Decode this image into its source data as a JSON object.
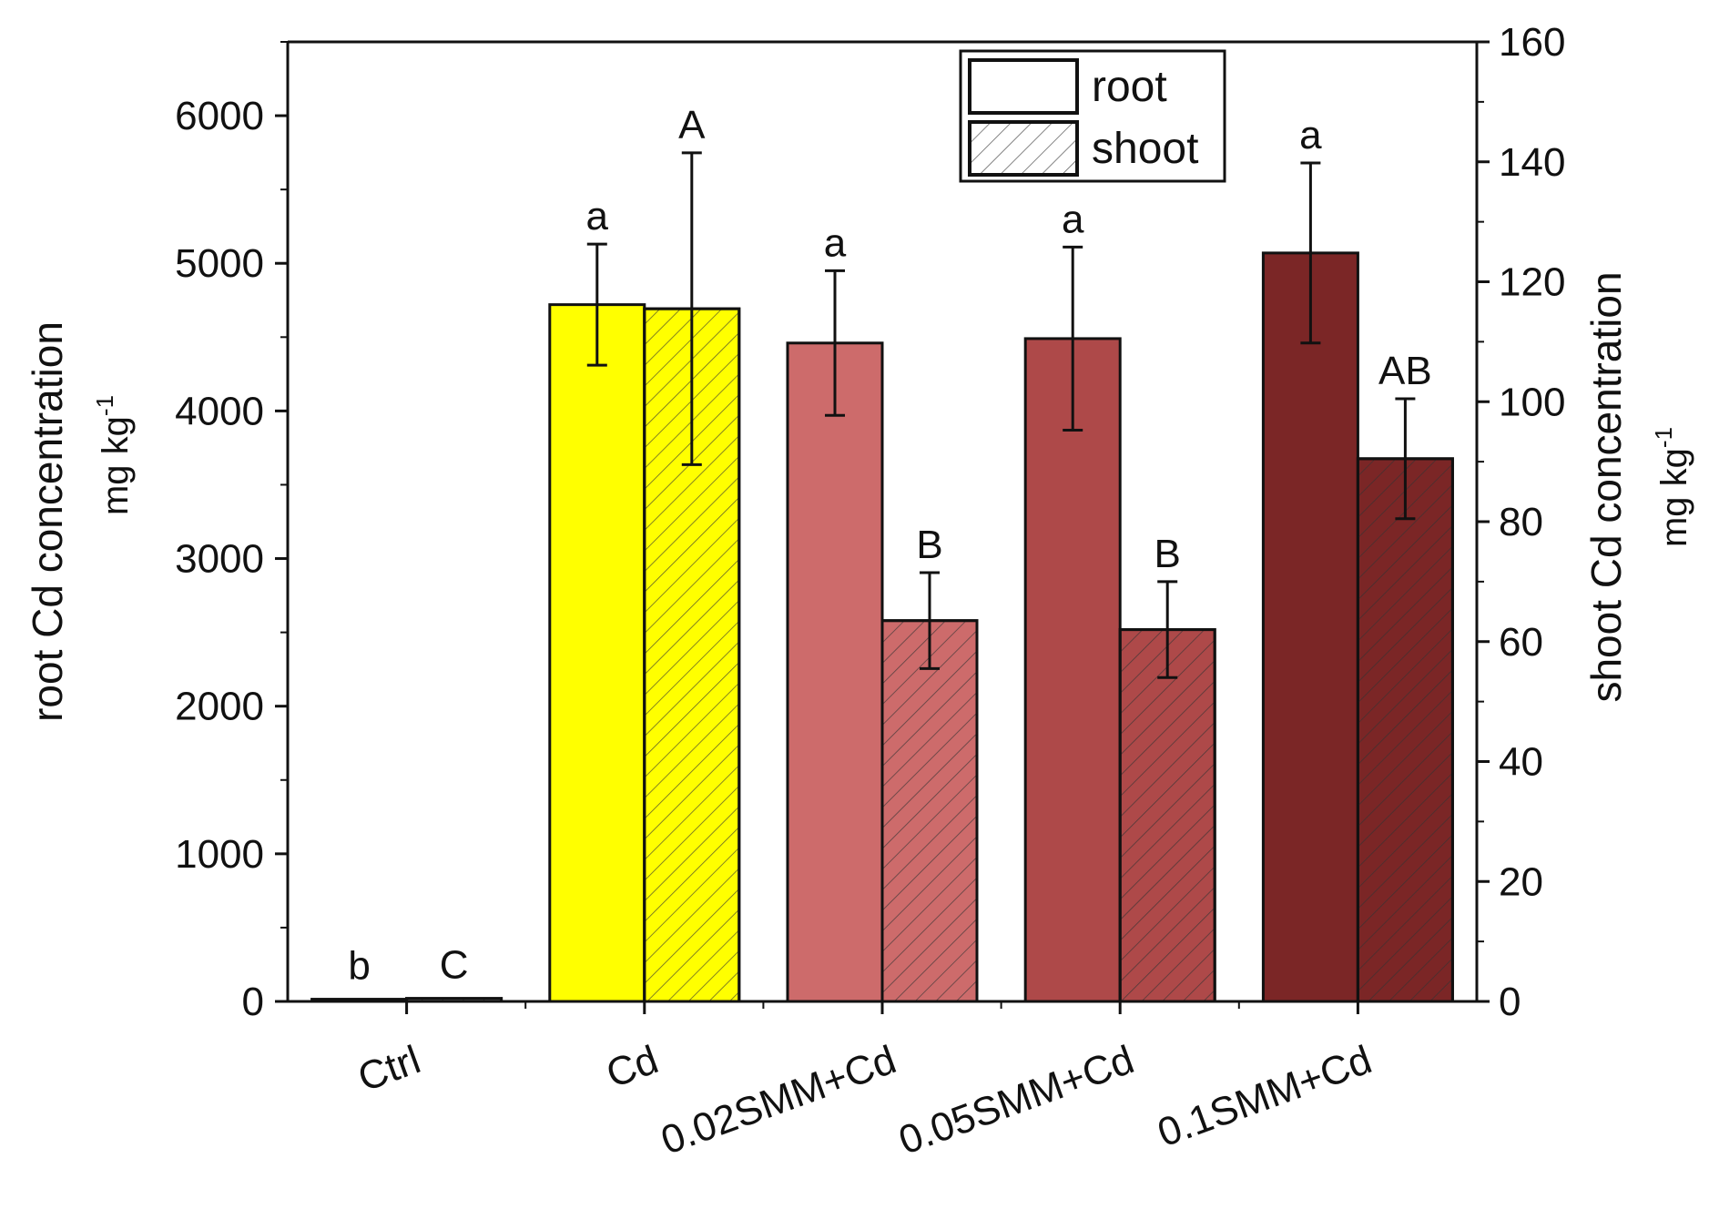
{
  "chart_data": {
    "type": "bar",
    "categories": [
      "Ctrl",
      "Cd",
      "0.02SMM+Cd",
      "0.05SMM+Cd",
      "0.1SMM+Cd"
    ],
    "series": [
      {
        "name": "root",
        "axis": "left",
        "values": [
          15,
          4720,
          4460,
          4490,
          5070
        ],
        "errors": [
          0,
          410,
          490,
          620,
          610
        ],
        "significance": [
          "b",
          "a",
          "a",
          "a",
          "a"
        ],
        "pattern": "solid"
      },
      {
        "name": "shoot",
        "axis": "right",
        "values": [
          0.5,
          115.5,
          63.5,
          62,
          90.5
        ],
        "errors": [
          0,
          26,
          8,
          8,
          10
        ],
        "significance": [
          "C",
          "A",
          "B",
          "B",
          "AB"
        ],
        "pattern": "hatched"
      }
    ],
    "category_colors": [
      "#ffffff",
      "#ffff00",
      "#cd6b6b",
      "#ae4949",
      "#7b2626"
    ],
    "left_axis": {
      "title": "root Cd concentration",
      "unit": "mg kg",
      "unit_sup": "-1",
      "ylim": [
        0,
        6500
      ],
      "ticks": [
        "0",
        "1000",
        "2000",
        "3000",
        "4000",
        "5000",
        "6000"
      ],
      "tick_values": [
        0,
        1000,
        2000,
        3000,
        4000,
        5000,
        6000
      ]
    },
    "right_axis": {
      "title": "shoot Cd concentration",
      "unit": "mg kg",
      "unit_sup": "-1",
      "ylim": [
        0,
        160
      ],
      "ticks": [
        "0",
        "20",
        "40",
        "60",
        "80",
        "100",
        "120",
        "140",
        "160"
      ],
      "tick_values": [
        0,
        20,
        40,
        60,
        80,
        100,
        120,
        140,
        160
      ]
    },
    "legend": {
      "position": "top-right",
      "entries": [
        "root",
        "shoot"
      ]
    }
  }
}
